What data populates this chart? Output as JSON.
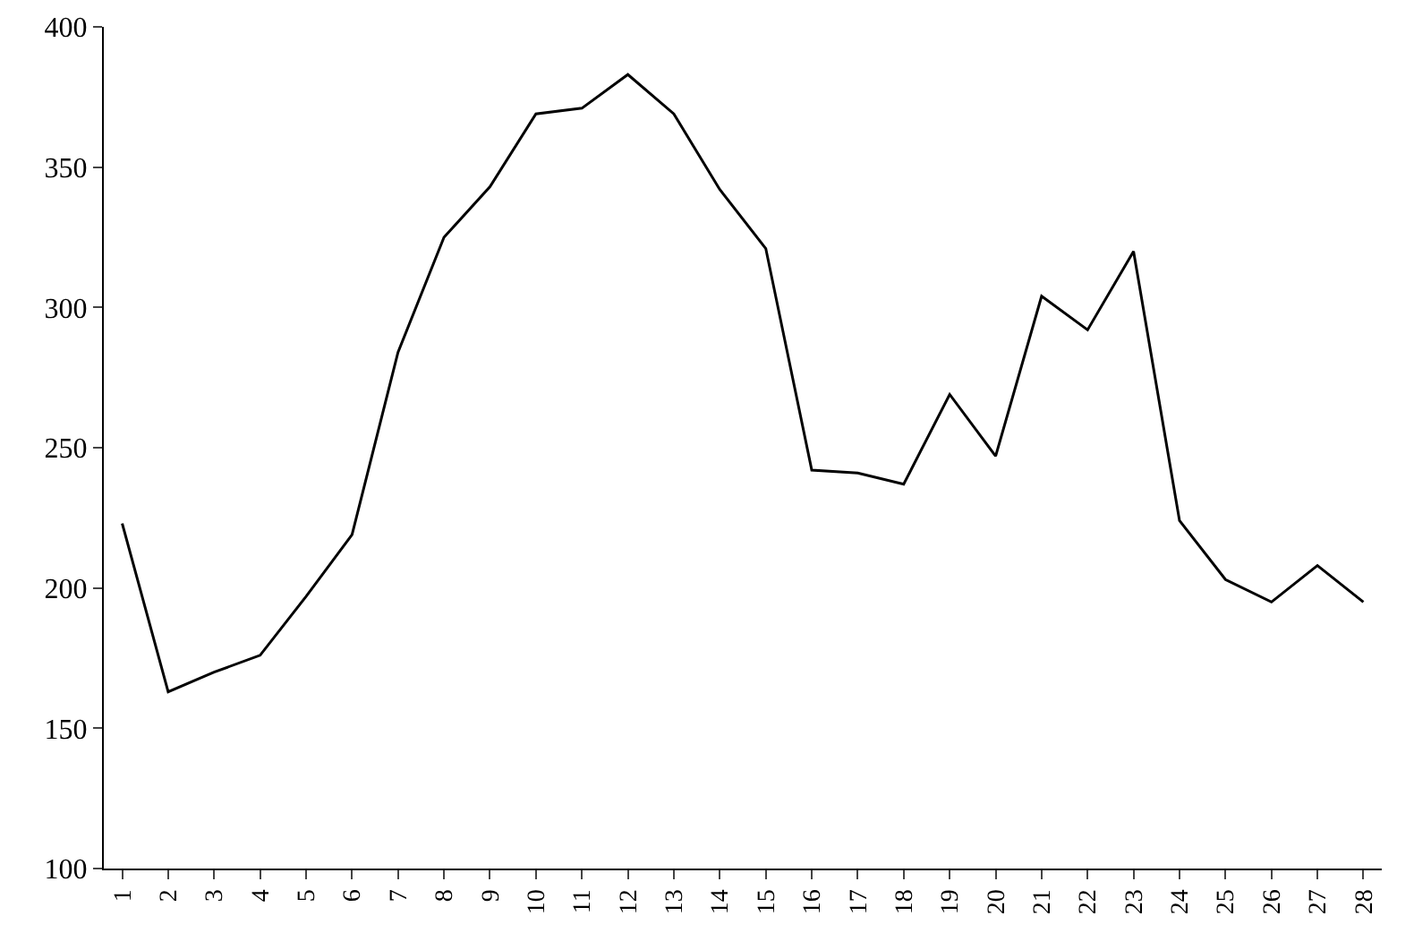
{
  "chart_data": {
    "type": "line",
    "categories": [
      "1",
      "2",
      "3",
      "4",
      "5",
      "6",
      "7",
      "8",
      "9",
      "10",
      "11",
      "12",
      "13",
      "14",
      "15",
      "16",
      "17",
      "18",
      "19",
      "20",
      "21",
      "22",
      "23",
      "24",
      "25",
      "26",
      "27",
      "28"
    ],
    "series": [
      {
        "color": "#000000",
        "values": [
          223,
          163,
          170,
          176,
          197,
          219,
          284,
          325,
          343,
          369,
          371,
          383,
          369,
          342,
          321,
          242,
          241,
          237,
          269,
          247,
          304,
          292,
          320,
          224,
          203,
          195,
          208,
          195
        ]
      }
    ],
    "ylim": [
      100,
      400
    ],
    "yticks": [
      100,
      150,
      200,
      250,
      300,
      350,
      400
    ],
    "legend": false,
    "marker": "none",
    "line_style": "solid"
  }
}
